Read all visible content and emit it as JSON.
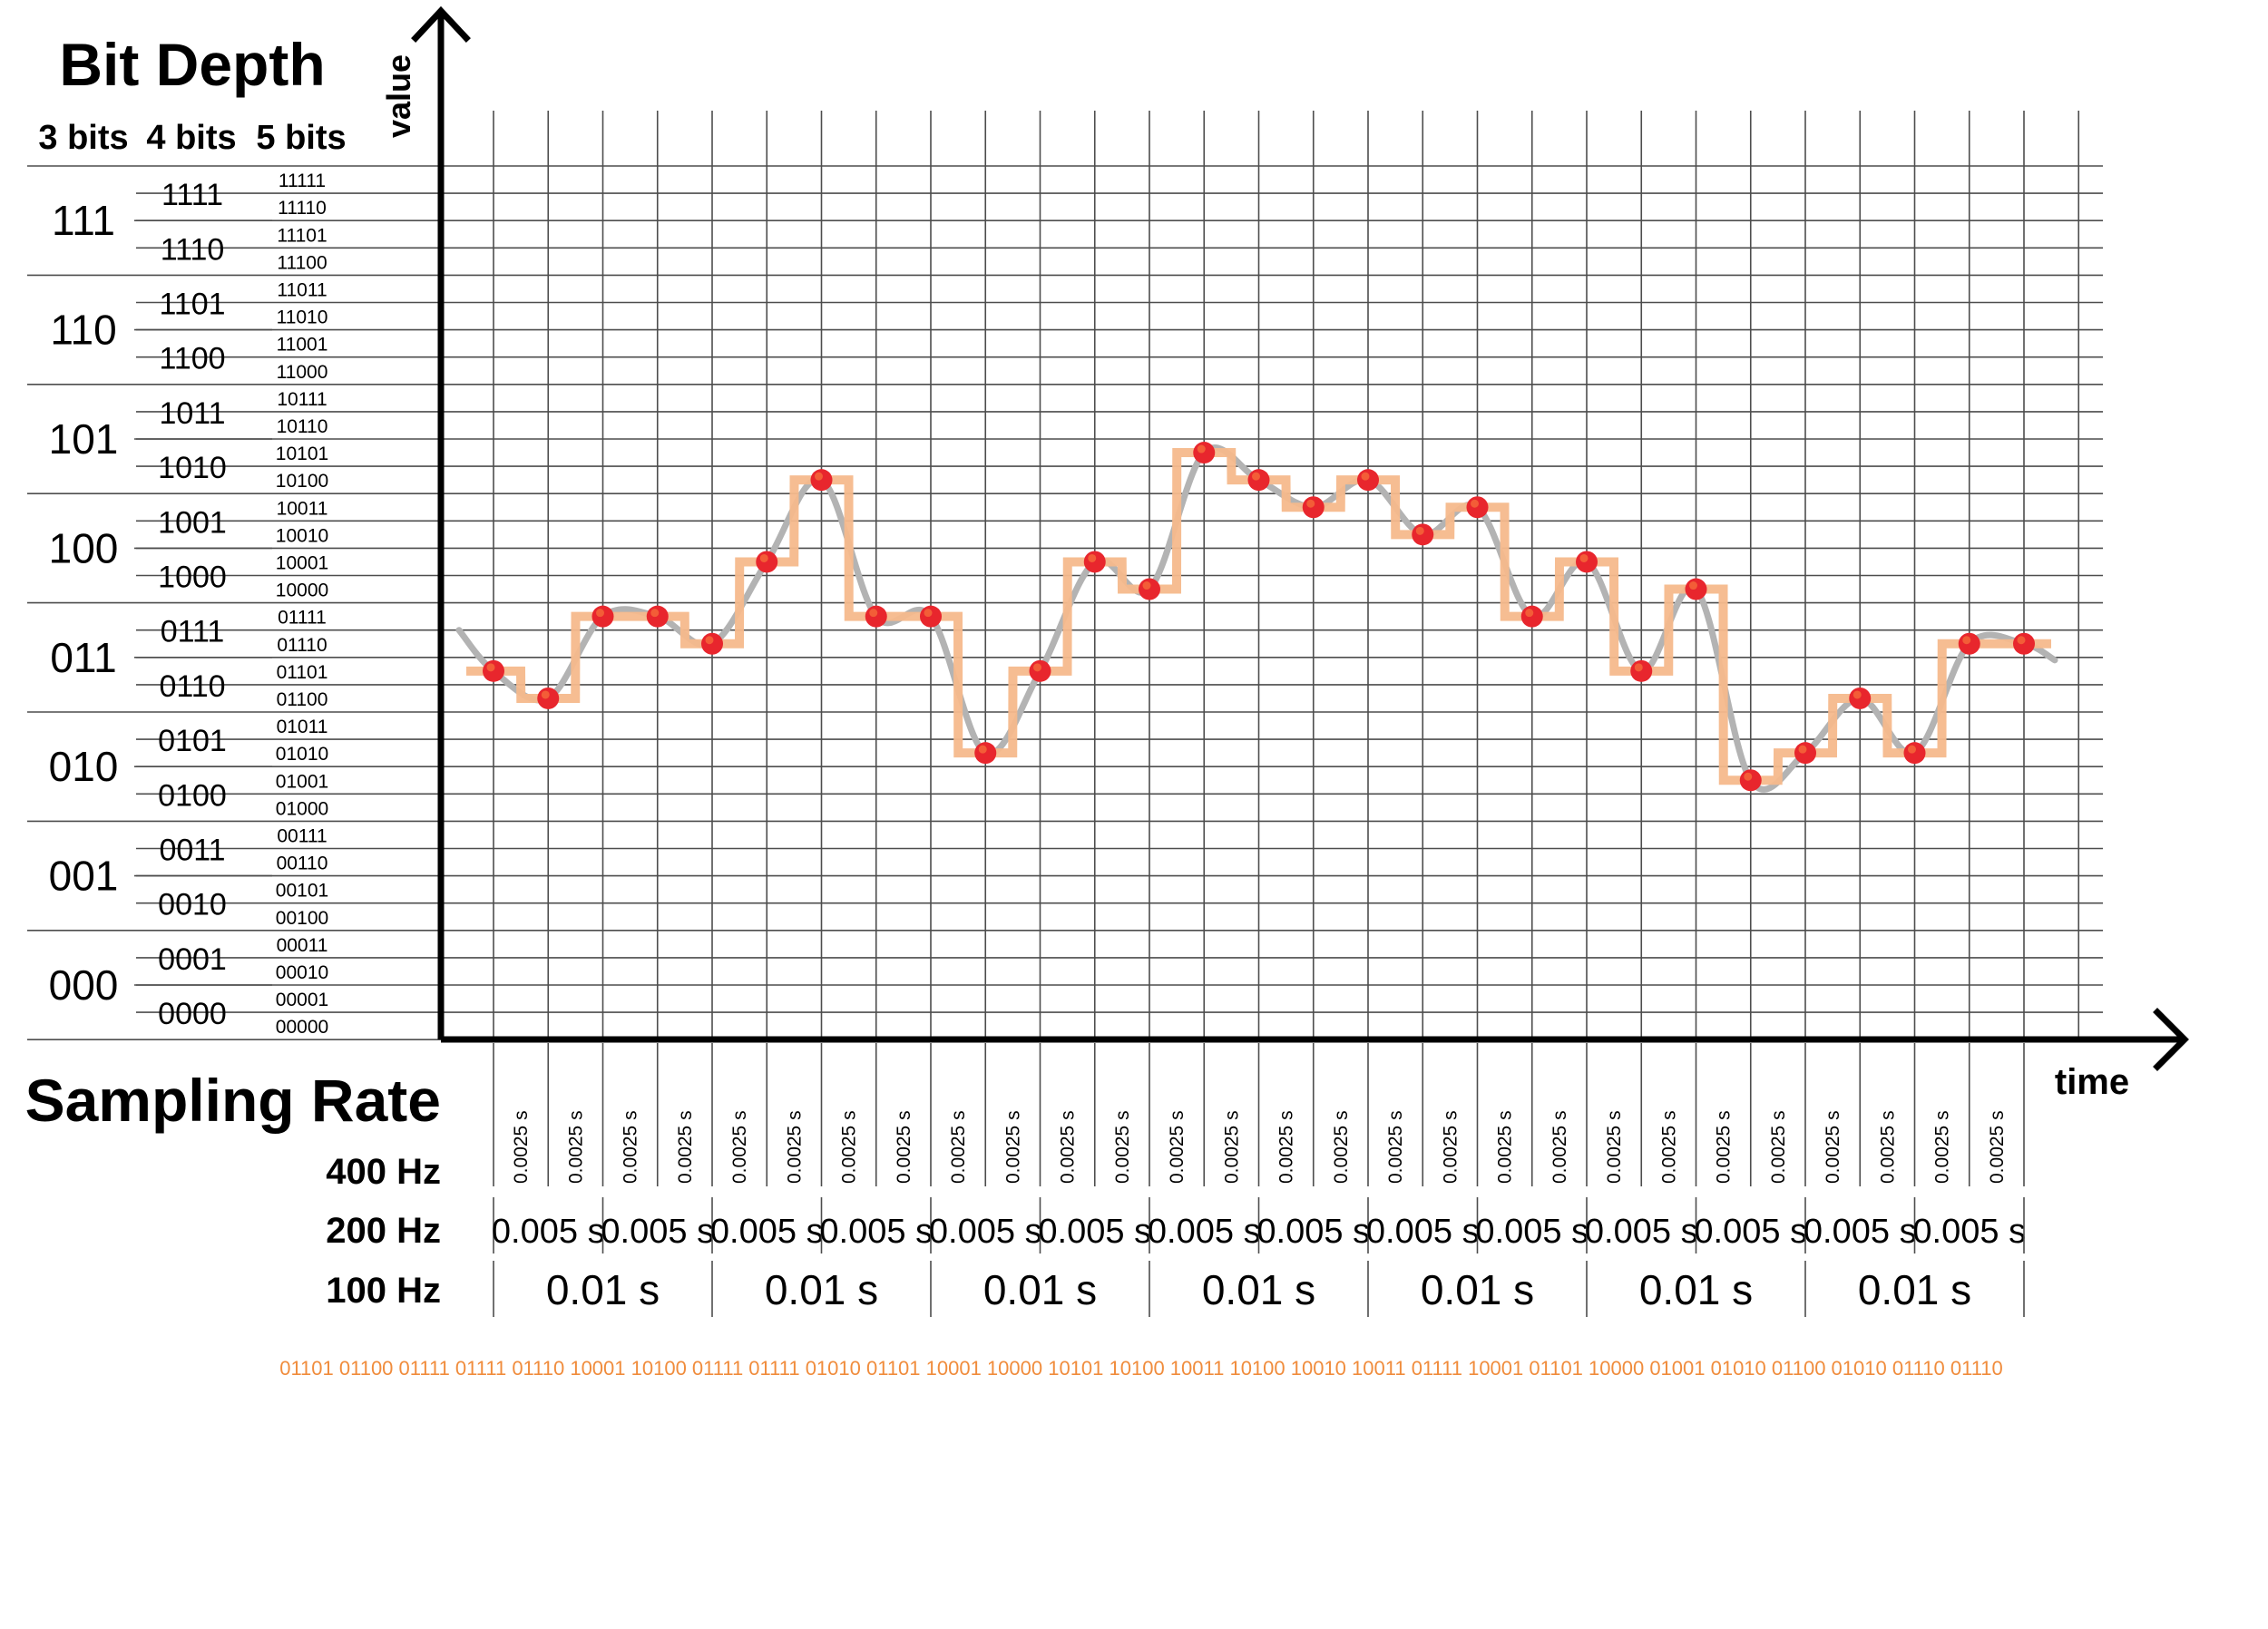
{
  "title_bit_depth": "Bit Depth",
  "bit_headers": [
    "3 bits",
    "4 bits",
    "5 bits"
  ],
  "axis_y_label": "value",
  "axis_x_label": "time",
  "title_sampling_rate": "Sampling Rate",
  "rate_labels": {
    "hz400": "400 Hz",
    "hz200": "200 Hz",
    "hz100": "100 Hz"
  },
  "codes3": [
    "111",
    "110",
    "101",
    "100",
    "011",
    "010",
    "001",
    "000"
  ],
  "codes4": [
    "1111",
    "1110",
    "1101",
    "1100",
    "1011",
    "1010",
    "1001",
    "1000",
    "0111",
    "0110",
    "0101",
    "0100",
    "0011",
    "0010",
    "0001",
    "0000"
  ],
  "codes5": [
    "11111",
    "11110",
    "11101",
    "11100",
    "11011",
    "11010",
    "11001",
    "11000",
    "10111",
    "10110",
    "10101",
    "10100",
    "10011",
    "10010",
    "10001",
    "10000",
    "01111",
    "01110",
    "01101",
    "01100",
    "01011",
    "01010",
    "01001",
    "01000",
    "00111",
    "00110",
    "00101",
    "00100",
    "00011",
    "00010",
    "00001",
    "00000"
  ],
  "period_400": "0.0025 s",
  "period_200": "0.005 s",
  "period_100": "0.01 s",
  "count_400": 28,
  "count_200": 14,
  "count_100": 7,
  "colors": {
    "analog": "#b3b3b3",
    "quantized": "#f6b98c",
    "sample": "#e8262d",
    "sample_highlight": "#f56b3a",
    "bitstream": "#f08c3c",
    "axis": "#000000",
    "grid": "#4d4d4d"
  },
  "chart_data": {
    "type": "line",
    "x_unit": "s",
    "sample_period": 0.0025,
    "y_levels": 32,
    "samples": [
      13,
      12,
      15,
      15,
      14,
      17,
      20,
      15,
      15,
      10,
      13,
      17,
      16,
      21,
      20,
      19,
      20,
      18,
      19,
      15,
      17,
      13,
      16,
      9,
      10,
      12,
      10,
      14,
      14
    ],
    "series": [
      {
        "kind": "analog signal"
      },
      {
        "kind": "quantized 5-bit"
      },
      {
        "kind": "sample points"
      }
    ]
  },
  "bitstream": "01101 01100 01111 01111 01110 10001 10100 01111 01111 01010 01101 10001 10000 10101 10100 10011 10100 10010 10011 01111 10001 01101 10000 01001 01010 01100 01010 01110 01110"
}
